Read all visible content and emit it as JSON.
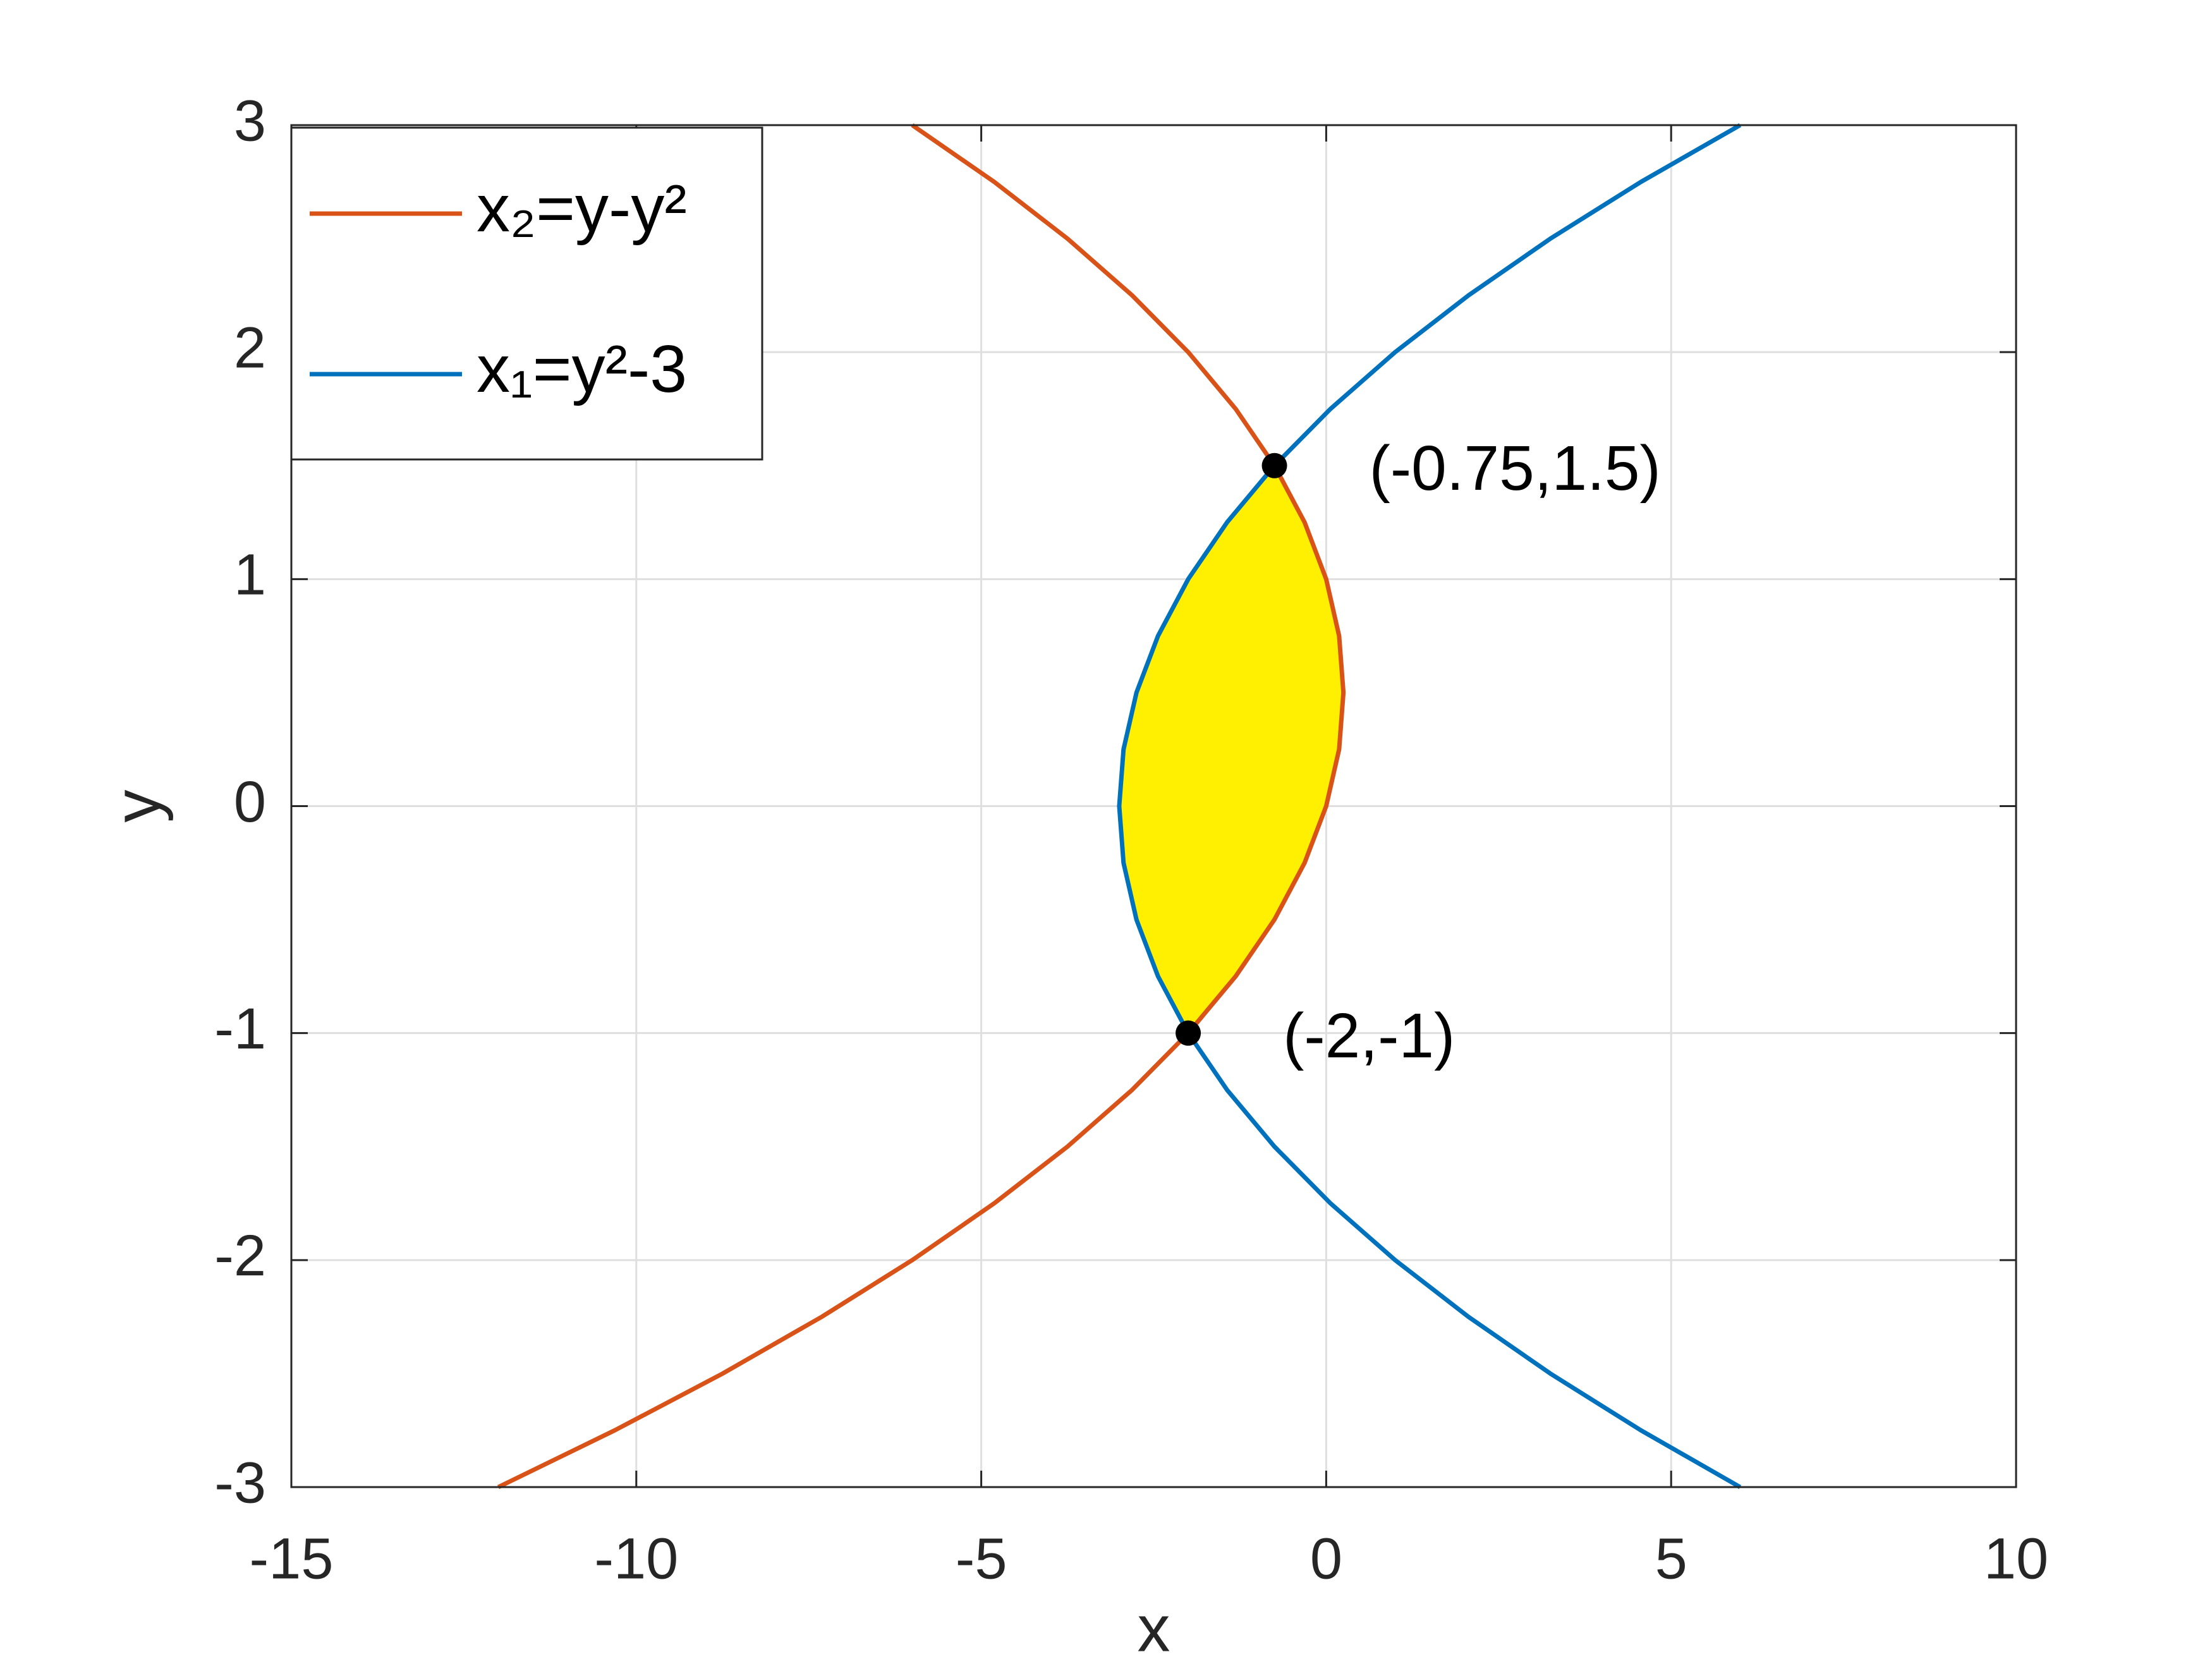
{
  "chart_data": {
    "type": "line",
    "xlabel": "x",
    "ylabel": "y",
    "xlim": [
      -15,
      10
    ],
    "ylim": [
      -3,
      3
    ],
    "xticks": [
      -15,
      -10,
      -5,
      0,
      5,
      10
    ],
    "yticks": [
      -3,
      -2,
      -1,
      0,
      1,
      2,
      3
    ],
    "grid": true,
    "legend_position": "upper-left",
    "series": [
      {
        "name": "x₂=y-y²",
        "color": "#d95319",
        "x": [
          -12,
          -10.3125,
          -8.75,
          -7.3125,
          -6,
          -4.8125,
          -3.75,
          -2.8125,
          -2,
          -1.3125,
          -0.75,
          -0.3125,
          0,
          0.1875,
          0.25,
          0.1875,
          0,
          -0.3125,
          -0.75,
          -1.3125,
          -2,
          -2.8125,
          -3.75,
          -4.8125,
          -6
        ],
        "y": [
          -3,
          -2.75,
          -2.5,
          -2.25,
          -2,
          -1.75,
          -1.5,
          -1.25,
          -1,
          -0.75,
          -0.5,
          -0.25,
          0,
          0.25,
          0.5,
          0.75,
          1,
          1.25,
          1.5,
          1.75,
          2,
          2.25,
          2.5,
          2.75,
          3
        ]
      },
      {
        "name": "x₁=y²-3",
        "color": "#0072bd",
        "x": [
          6,
          4.5625,
          3.25,
          2.0625,
          1,
          0.0625,
          -0.75,
          -1.4375,
          -2,
          -2.4375,
          -2.75,
          -2.9375,
          -3,
          -2.9375,
          -2.75,
          -2.4375,
          -2,
          -1.4375,
          -0.75,
          0.0625,
          1,
          2.0625,
          3.25,
          4.5625,
          6
        ],
        "y": [
          -3,
          -2.75,
          -2.5,
          -2.25,
          -2,
          -1.75,
          -1.5,
          -1.25,
          -1,
          -0.75,
          -0.5,
          -0.25,
          0,
          0.25,
          0.5,
          0.75,
          1,
          1.25,
          1.5,
          1.75,
          2,
          2.25,
          2.5,
          2.75,
          3
        ]
      }
    ],
    "fill": {
      "color": "#ffef00",
      "y_range": [
        -1,
        1.5
      ]
    },
    "points": {
      "color": "#000000",
      "x": [
        -0.75,
        -2
      ],
      "y": [
        1.5,
        -1
      ],
      "labels": [
        "(-0.75,1.5)",
        "(-2,-1)"
      ]
    }
  }
}
